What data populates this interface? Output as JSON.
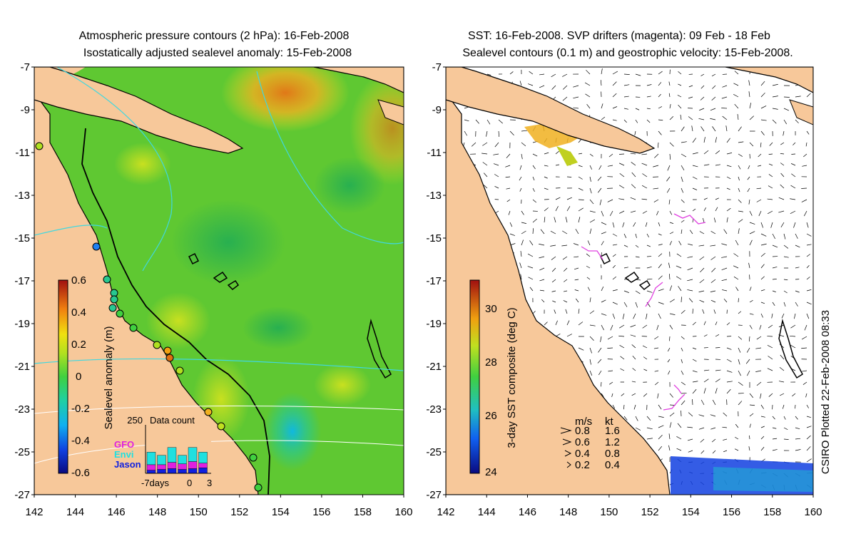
{
  "left_panel": {
    "title_line1": "Atmospheric pressure contours (2 hPa): 16-Feb-2008",
    "title_line2": "Isostatically adjusted sealevel anomaly: 15-Feb-2008",
    "colorbar_label": "Sealevel anomaly (m)",
    "colorbar_ticks": [
      "0.6",
      "0.4",
      "0.2",
      "0",
      "-0.2",
      "-0.4",
      "-0.6"
    ],
    "histogram": {
      "title": "Data count",
      "ymax_label": "250",
      "xlabels": [
        "-7days",
        "0",
        "3"
      ],
      "legend": [
        {
          "label": "GFO",
          "color": "#e020e0"
        },
        {
          "label": "Envi",
          "color": "#20e0e0"
        },
        {
          "label": "Jason",
          "color": "#1020e0"
        }
      ]
    }
  },
  "right_panel": {
    "title_line1": "SST: 16-Feb-2008. SVP drifters (magenta): 09 Feb - 18 Feb",
    "title_line2": "Sealevel contours (0.1 m) and geostrophic velocity: 15-Feb-2008.",
    "colorbar_label": "3-day SST composite (deg C)",
    "colorbar_ticks": [
      "30",
      "28",
      "26",
      "24"
    ],
    "velocity_legend": {
      "header_ms": "m/s",
      "header_kt": "kt",
      "rows": [
        {
          "ms": "0.8",
          "kt": "1.6"
        },
        {
          "ms": "0.6",
          "kt": "1.2"
        },
        {
          "ms": "0.4",
          "kt": "0.8"
        },
        {
          "ms": "0.2",
          "kt": "0.4"
        }
      ]
    },
    "credit": "CSIRO Plotted 22-Feb-2008 08:33"
  },
  "axes": {
    "lon_ticks": [
      "142",
      "144",
      "146",
      "148",
      "150",
      "152",
      "154",
      "156",
      "158",
      "160"
    ],
    "lat_ticks": [
      "-7",
      "-9",
      "-11",
      "-13",
      "-15",
      "-17",
      "-19",
      "-21",
      "-23",
      "-25",
      "-27"
    ]
  },
  "colors": {
    "land": "#f7c89a",
    "ocean_sla": "#5fc832",
    "coast": "#000000",
    "pressure_contour": "#40d8e0",
    "drifter": "#e040e0"
  }
}
